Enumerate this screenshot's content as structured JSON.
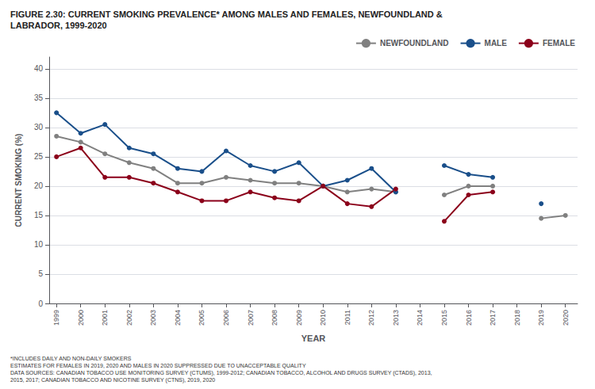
{
  "chart_data": {
    "type": "line",
    "title": "FIGURE 2.30: CURRENT SMOKING PREVALENCE* AMONG MALES AND FEMALES, NEWFOUNDLAND &\nLABRADOR, 1999-2020",
    "xlabel": "YEAR",
    "ylabel": "CURRENT SMOKING (%)",
    "x": [
      1999,
      2000,
      2001,
      2002,
      2003,
      2004,
      2005,
      2006,
      2007,
      2008,
      2009,
      2010,
      2011,
      2012,
      2013,
      2014,
      2015,
      2016,
      2017,
      2018,
      2019,
      2020
    ],
    "series": [
      {
        "name": "NEWFOUNDLAND",
        "color": "#808080",
        "values": [
          28.5,
          27.5,
          25.5,
          24.0,
          23.0,
          20.5,
          20.5,
          21.5,
          21.0,
          20.5,
          20.5,
          20.0,
          19.0,
          19.5,
          19.0,
          null,
          18.5,
          20.0,
          20.0,
          null,
          14.5,
          15.0
        ]
      },
      {
        "name": "MALE",
        "color": "#1a4f8a",
        "values": [
          32.5,
          29.0,
          30.5,
          26.5,
          25.5,
          23.0,
          22.5,
          26.0,
          23.5,
          22.5,
          24.0,
          20.0,
          21.0,
          23.0,
          19.0,
          null,
          23.5,
          22.0,
          21.5,
          null,
          17.0,
          null
        ]
      },
      {
        "name": "FEMALE",
        "color": "#8b001a",
        "values": [
          25.0,
          26.5,
          21.5,
          21.5,
          20.5,
          19.0,
          17.5,
          17.5,
          19.0,
          18.0,
          17.5,
          20.0,
          17.0,
          16.5,
          19.5,
          null,
          14.0,
          18.5,
          19.0,
          null,
          null,
          null
        ]
      }
    ],
    "marker": "circle",
    "xlim": [
      1998.7,
      2020.5
    ],
    "xticks": [
      1999,
      2000,
      2001,
      2002,
      2003,
      2004,
      2005,
      2006,
      2007,
      2008,
      2009,
      2010,
      2011,
      2012,
      2013,
      2014,
      2015,
      2016,
      2017,
      2018,
      2019,
      2020
    ],
    "ylim": [
      0,
      42
    ],
    "yticks": [
      0,
      5,
      10,
      15,
      20,
      25,
      30,
      35,
      40
    ],
    "grid": "y",
    "legend": "upper right",
    "footnotes": [
      "*INCLUDES DAILY AND NON-DAILY SMOKERS",
      "ESTIMATES FOR FEMALES IN 2019, 2020 AND MALES IN 2020 SUPPRESSED DUE TO UNACCEPTABLE QUALITY",
      "DATA SOURCES: CANADIAN TOBACCO USE MONITORING SURVEY (CTUMS), 1999-2012; CANADIAN TOBACCO, ALCOHOL AND DRUGS SURVEY (CTADS), 2013,",
      "2015, 2017; CANADIAN TOBACCO AND NICOTINE SURVEY (CTNS), 2019, 2020"
    ]
  }
}
